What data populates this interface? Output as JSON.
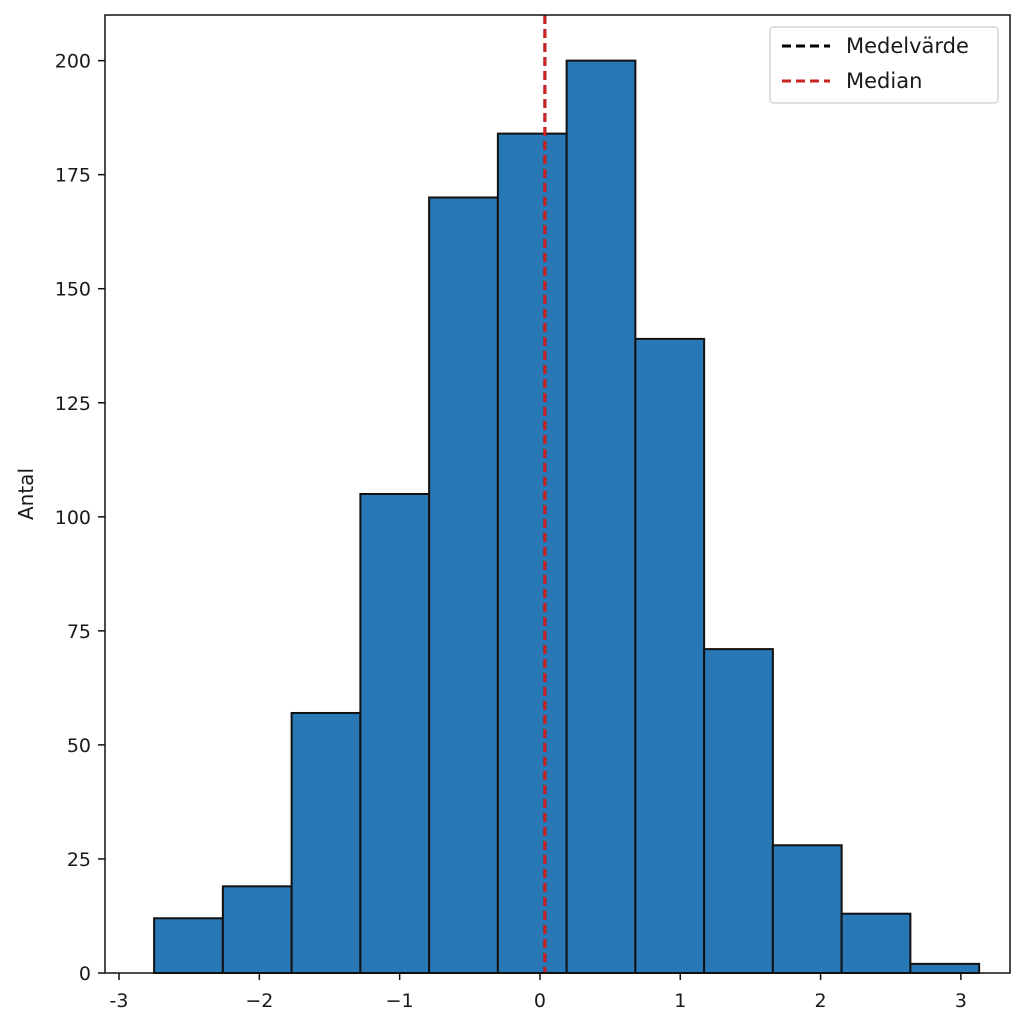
{
  "chart_data": {
    "type": "bar",
    "subtype": "histogram",
    "title": "",
    "xlabel": "",
    "ylabel": "Antal",
    "bin_edges": [
      -2.75,
      -2.26,
      -1.77,
      -1.28,
      -0.79,
      -0.3,
      0.19,
      0.68,
      1.17,
      1.66,
      2.15,
      2.64,
      3.13
    ],
    "values": [
      12,
      19,
      57,
      105,
      170,
      184,
      200,
      139,
      71,
      28,
      13,
      2
    ],
    "xlim": [
      -3.1,
      3.35
    ],
    "ylim": [
      0,
      210
    ],
    "xticks": [
      -3,
      -2,
      -1,
      0,
      1,
      2,
      3
    ],
    "xtick_labels": [
      "-3",
      "−2",
      "−1",
      "0",
      "1",
      "2",
      "3"
    ],
    "yticks": [
      0,
      25,
      50,
      75,
      100,
      125,
      150,
      175,
      200
    ],
    "ytick_labels": [
      "0",
      "25",
      "50",
      "75",
      "100",
      "125",
      "150",
      "175",
      "200"
    ],
    "bar_color": "#2878b5",
    "edge_color": "#111111",
    "reference_lines": [
      {
        "name": "Medelvärde",
        "x": 0.035,
        "color": "#000000",
        "style": "dashed"
      },
      {
        "name": "Median",
        "x": 0.035,
        "color": "#cc2222",
        "style": "dashed"
      }
    ],
    "legend": {
      "placement": "top-right",
      "entries": [
        {
          "label": "Medelvärde",
          "color": "#000000"
        },
        {
          "label": "Median",
          "color": "#cc2222"
        }
      ]
    },
    "grid": false
  }
}
